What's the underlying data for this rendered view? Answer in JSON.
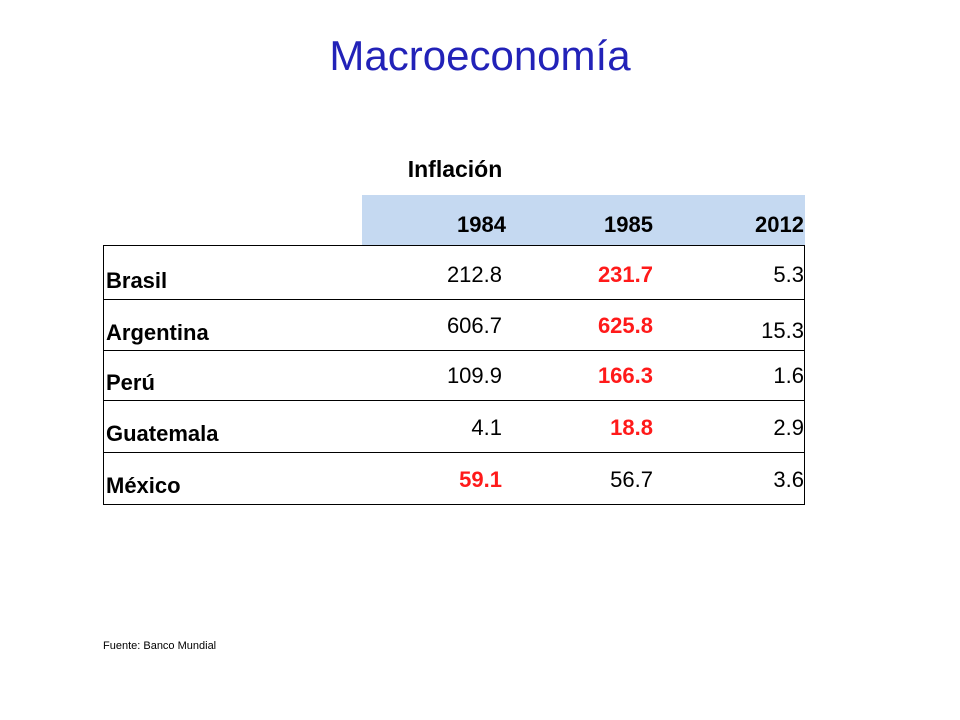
{
  "title": "Macroeconomía",
  "table": {
    "title": "Inflación",
    "columns": [
      "1984",
      "1985",
      "2012"
    ],
    "rows": [
      {
        "country": "Brasil",
        "values": [
          "212.8",
          "231.7",
          "5.3"
        ],
        "highlight": 1
      },
      {
        "country": "Argentina",
        "values": [
          "606.7",
          "625.8",
          "15.3"
        ],
        "highlight": 1
      },
      {
        "country": "Perú",
        "values": [
          "109.9",
          "166.3",
          "1.6"
        ],
        "highlight": 1
      },
      {
        "country": "Guatemala",
        "values": [
          "4.1",
          "18.8",
          "2.9"
        ],
        "highlight": 1
      },
      {
        "country": "México",
        "values": [
          "59.1",
          "56.7",
          "3.6"
        ],
        "highlight": 0
      }
    ],
    "highlight_color": "#ff1a1a",
    "header_color": "#c5d9f1"
  },
  "source": "Fuente: Banco Mundial"
}
